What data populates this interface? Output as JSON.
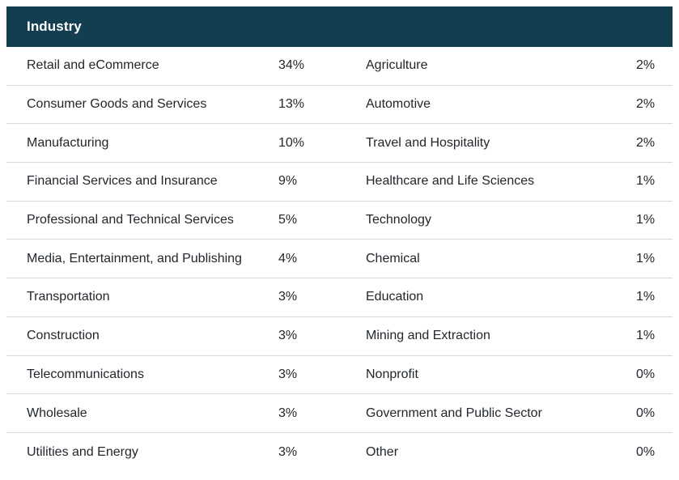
{
  "table": {
    "title": "Industry",
    "colors": {
      "header_bg": "#123e50",
      "header_text": "#ffffff",
      "body_text": "#21272c",
      "divider": "#d9d9d9",
      "page_bg": "#ffffff"
    },
    "rows": [
      {
        "left_label": "Retail and eCommerce",
        "left_value": "34%",
        "right_label": "Agriculture",
        "right_value": "2%"
      },
      {
        "left_label": "Consumer Goods and Services",
        "left_value": "13%",
        "right_label": "Automotive",
        "right_value": "2%"
      },
      {
        "left_label": "Manufacturing",
        "left_value": "10%",
        "right_label": "Travel and Hospitality",
        "right_value": "2%"
      },
      {
        "left_label": "Financial Services and Insurance",
        "left_value": "9%",
        "right_label": "Healthcare and Life Sciences",
        "right_value": "1%"
      },
      {
        "left_label": "Professional and Technical Services",
        "left_value": "5%",
        "right_label": "Technology",
        "right_value": "1%"
      },
      {
        "left_label": "Media, Entertainment, and Publishing",
        "left_value": "4%",
        "right_label": "Chemical",
        "right_value": "1%"
      },
      {
        "left_label": "Transportation",
        "left_value": "3%",
        "right_label": "Education",
        "right_value": "1%"
      },
      {
        "left_label": "Construction",
        "left_value": "3%",
        "right_label": "Mining and Extraction",
        "right_value": "1%"
      },
      {
        "left_label": "Telecommunications",
        "left_value": "3%",
        "right_label": "Nonprofit",
        "right_value": "0%"
      },
      {
        "left_label": "Wholesale",
        "left_value": "3%",
        "right_label": "Government and Public Sector",
        "right_value": "0%"
      },
      {
        "left_label": "Utilities and Energy",
        "left_value": "3%",
        "right_label": "Other",
        "right_value": "0%"
      }
    ]
  },
  "chart_data": {
    "type": "table",
    "title": "Industry",
    "layout": "two-pane table, header band spans full width, percentages left-aligned in value columns, rows separated by 1px light-gray dividers",
    "entries": [
      {
        "label": "Retail and eCommerce",
        "value_pct": 34
      },
      {
        "label": "Consumer Goods and Services",
        "value_pct": 13
      },
      {
        "label": "Manufacturing",
        "value_pct": 10
      },
      {
        "label": "Financial Services and Insurance",
        "value_pct": 9
      },
      {
        "label": "Professional and Technical Services",
        "value_pct": 5
      },
      {
        "label": "Media, Entertainment, and Publishing",
        "value_pct": 4
      },
      {
        "label": "Transportation",
        "value_pct": 3
      },
      {
        "label": "Construction",
        "value_pct": 3
      },
      {
        "label": "Telecommunications",
        "value_pct": 3
      },
      {
        "label": "Wholesale",
        "value_pct": 3
      },
      {
        "label": "Utilities and Energy",
        "value_pct": 3
      },
      {
        "label": "Agriculture",
        "value_pct": 2
      },
      {
        "label": "Automotive",
        "value_pct": 2
      },
      {
        "label": "Travel and Hospitality",
        "value_pct": 2
      },
      {
        "label": "Healthcare and Life Sciences",
        "value_pct": 1
      },
      {
        "label": "Technology",
        "value_pct": 1
      },
      {
        "label": "Chemical",
        "value_pct": 1
      },
      {
        "label": "Education",
        "value_pct": 1
      },
      {
        "label": "Mining and Extraction",
        "value_pct": 1
      },
      {
        "label": "Nonprofit",
        "value_pct": 0
      },
      {
        "label": "Government and Public Sector",
        "value_pct": 0
      },
      {
        "label": "Other",
        "value_pct": 0
      }
    ]
  }
}
